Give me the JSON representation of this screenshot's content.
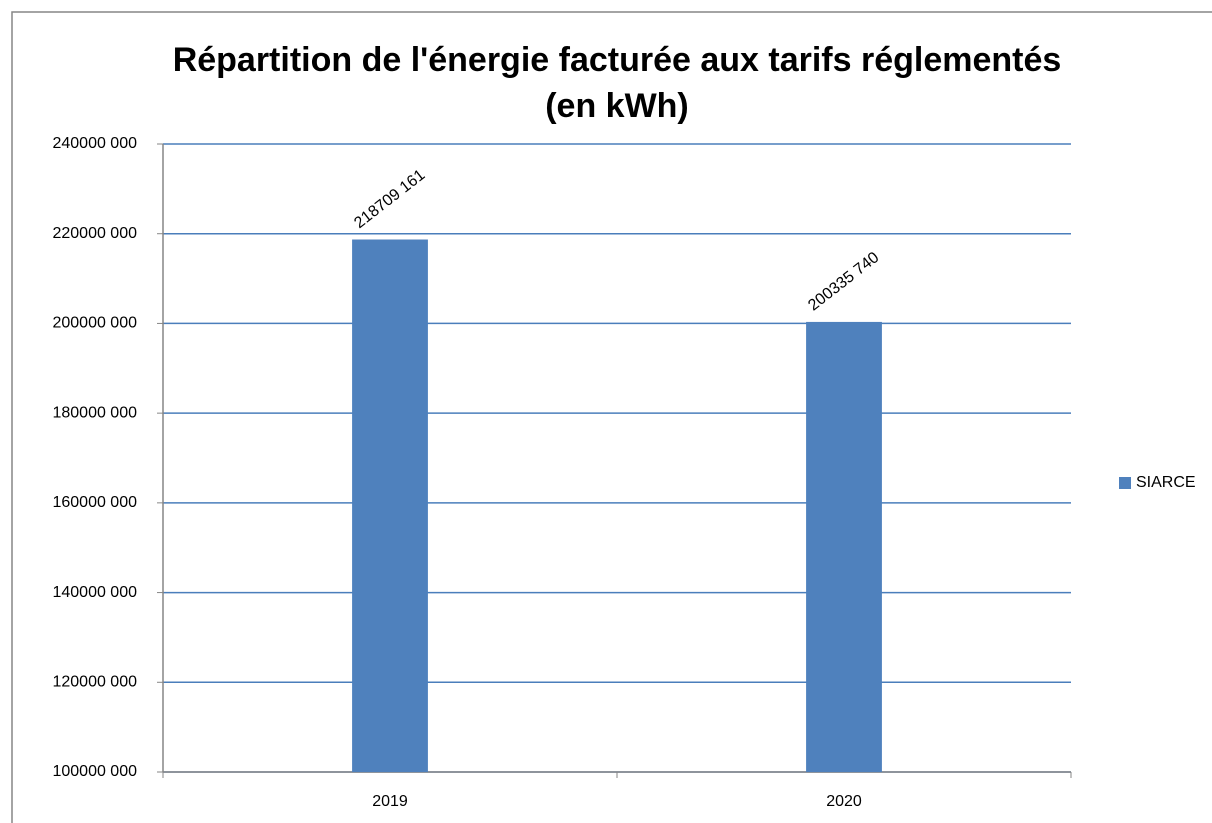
{
  "chart_data": {
    "type": "bar",
    "title": [
      "Répartition de l'énergie facturée aux tarifs réglementés",
      "(en kWh)"
    ],
    "categories": [
      "2019",
      "2020"
    ],
    "series": [
      {
        "name": "SIARCE",
        "color": "#4f81bd",
        "values": [
          218709161,
          200335740
        ],
        "value_labels": [
          "218709 161",
          "200335 740"
        ]
      }
    ],
    "ylim": [
      100000000,
      240000000
    ],
    "yticks": [
      {
        "value": 100000000,
        "label": "100000 000"
      },
      {
        "value": 120000000,
        "label": "120000 000"
      },
      {
        "value": 140000000,
        "label": "140000 000"
      },
      {
        "value": 160000000,
        "label": "160000 000"
      },
      {
        "value": 180000000,
        "label": "180000 000"
      },
      {
        "value": 200000000,
        "label": "200000 000"
      },
      {
        "value": 220000000,
        "label": "220000 000"
      },
      {
        "value": 240000000,
        "label": "240000 000"
      }
    ],
    "grid": true,
    "grid_color": "#4a7ebb",
    "legend": "right"
  }
}
